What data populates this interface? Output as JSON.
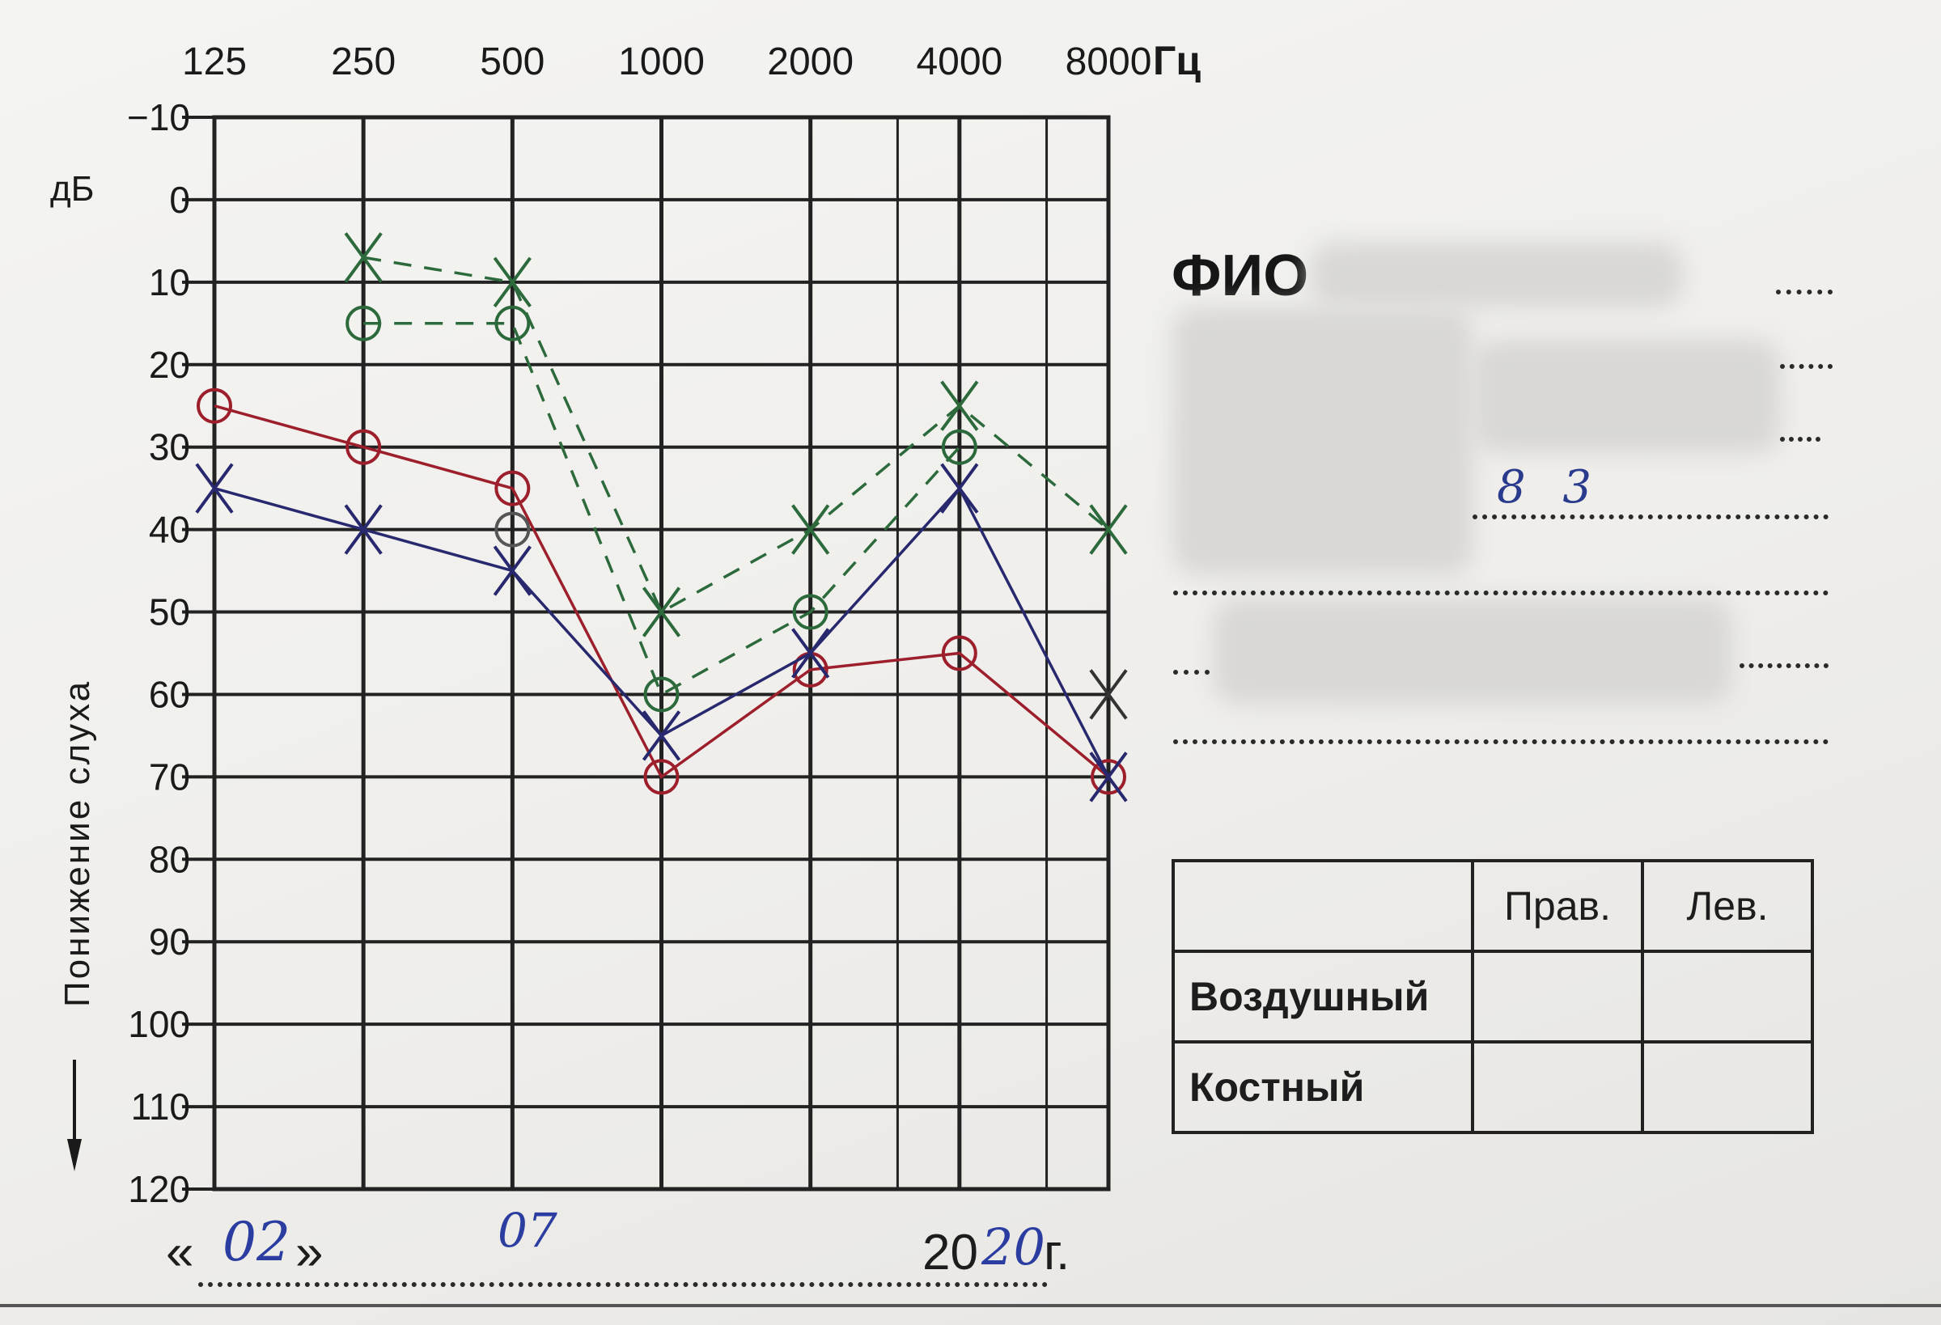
{
  "chart_data": {
    "type": "line",
    "title": "",
    "x_scale": "log2",
    "categories": [
      "125",
      "250",
      "500",
      "1000",
      "2000",
      "4000",
      "8000"
    ],
    "x_ticks": [
      125,
      250,
      500,
      1000,
      2000,
      4000,
      8000
    ],
    "x_unit": "Гц",
    "y_unit": "дБ",
    "ylabel": "Понижение слуха",
    "ylim": [
      -10,
      120
    ],
    "y_ticks": [
      -10,
      0,
      10,
      20,
      30,
      40,
      50,
      60,
      70,
      80,
      90,
      100,
      110,
      120
    ],
    "y_inverted": true,
    "grid": true,
    "series": [
      {
        "marker": "circle",
        "color": "#9c1f2b",
        "line": "solid",
        "points": [
          [
            125,
            25
          ],
          [
            250,
            30
          ],
          [
            500,
            35
          ],
          [
            1000,
            70
          ],
          [
            2000,
            57
          ],
          [
            4000,
            55
          ],
          [
            8000,
            70
          ]
        ]
      },
      {
        "marker": "cross",
        "color": "#28286e",
        "line": "solid",
        "points": [
          [
            125,
            35
          ],
          [
            250,
            40
          ],
          [
            500,
            45
          ],
          [
            1000,
            65
          ],
          [
            2000,
            55
          ],
          [
            4000,
            35
          ],
          [
            8000,
            70
          ]
        ]
      },
      {
        "marker": "circle",
        "color": "#2c6a3c",
        "line": "dashed",
        "points": [
          [
            250,
            15
          ],
          [
            500,
            15
          ],
          [
            1000,
            60
          ],
          [
            2000,
            50
          ],
          [
            4000,
            30
          ]
        ]
      },
      {
        "marker": "cross",
        "color": "#2c6a3c",
        "line": "dashed",
        "points": [
          [
            250,
            7
          ],
          [
            500,
            10
          ],
          [
            1000,
            50
          ],
          [
            2000,
            40
          ],
          [
            4000,
            25
          ],
          [
            8000,
            40
          ]
        ]
      },
      {
        "marker": "circle",
        "color": "#555555",
        "line": "none",
        "points": [
          [
            500,
            40
          ]
        ]
      },
      {
        "marker": "cross",
        "color": "#333333",
        "line": "none",
        "points": [
          [
            8000,
            60
          ]
        ]
      }
    ]
  },
  "form": {
    "fio_label": "ФИО",
    "age_value": "8 3"
  },
  "table": {
    "right_header": "Прав.",
    "left_header": "Лев.",
    "row_air": "Воздушный",
    "row_bone": "Костный"
  },
  "date": {
    "open_quote": "«",
    "day": "02",
    "close_quote": "»",
    "month": "07",
    "year_prefix": "20",
    "year_suffix": "20",
    "year_mark": "г."
  }
}
